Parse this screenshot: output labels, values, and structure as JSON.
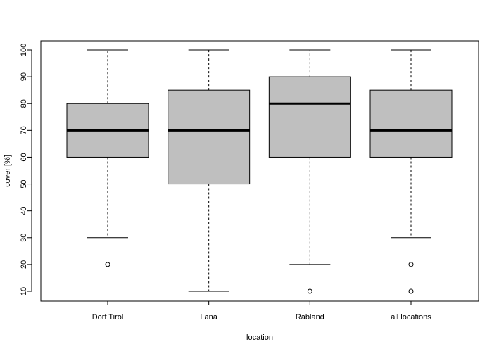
{
  "chart_data": {
    "type": "boxplot",
    "title": "",
    "xlabel": "location",
    "ylabel": "cover [%]",
    "ylim": [
      10,
      100
    ],
    "yticks": [
      10,
      20,
      30,
      40,
      50,
      60,
      70,
      80,
      90,
      100
    ],
    "categories": [
      "Dorf Tirol",
      "Lana",
      "Rabland",
      "all locations"
    ],
    "boxes": [
      {
        "label": "Dorf Tirol",
        "whisker_low": 30,
        "q1": 60,
        "median": 70,
        "q3": 80,
        "whisker_high": 100,
        "outliers": [
          20
        ]
      },
      {
        "label": "Lana",
        "whisker_low": 10,
        "q1": 50,
        "median": 70,
        "q3": 85,
        "whisker_high": 100,
        "outliers": []
      },
      {
        "label": "Rabland",
        "whisker_low": 20,
        "q1": 60,
        "median": 80,
        "q3": 90,
        "whisker_high": 100,
        "outliers": [
          10
        ]
      },
      {
        "label": "all locations",
        "whisker_low": 30,
        "q1": 60,
        "median": 70,
        "q3": 85,
        "whisker_high": 100,
        "outliers": [
          20,
          10
        ]
      }
    ],
    "box_fill": "#bfbfbf",
    "grid": false
  }
}
